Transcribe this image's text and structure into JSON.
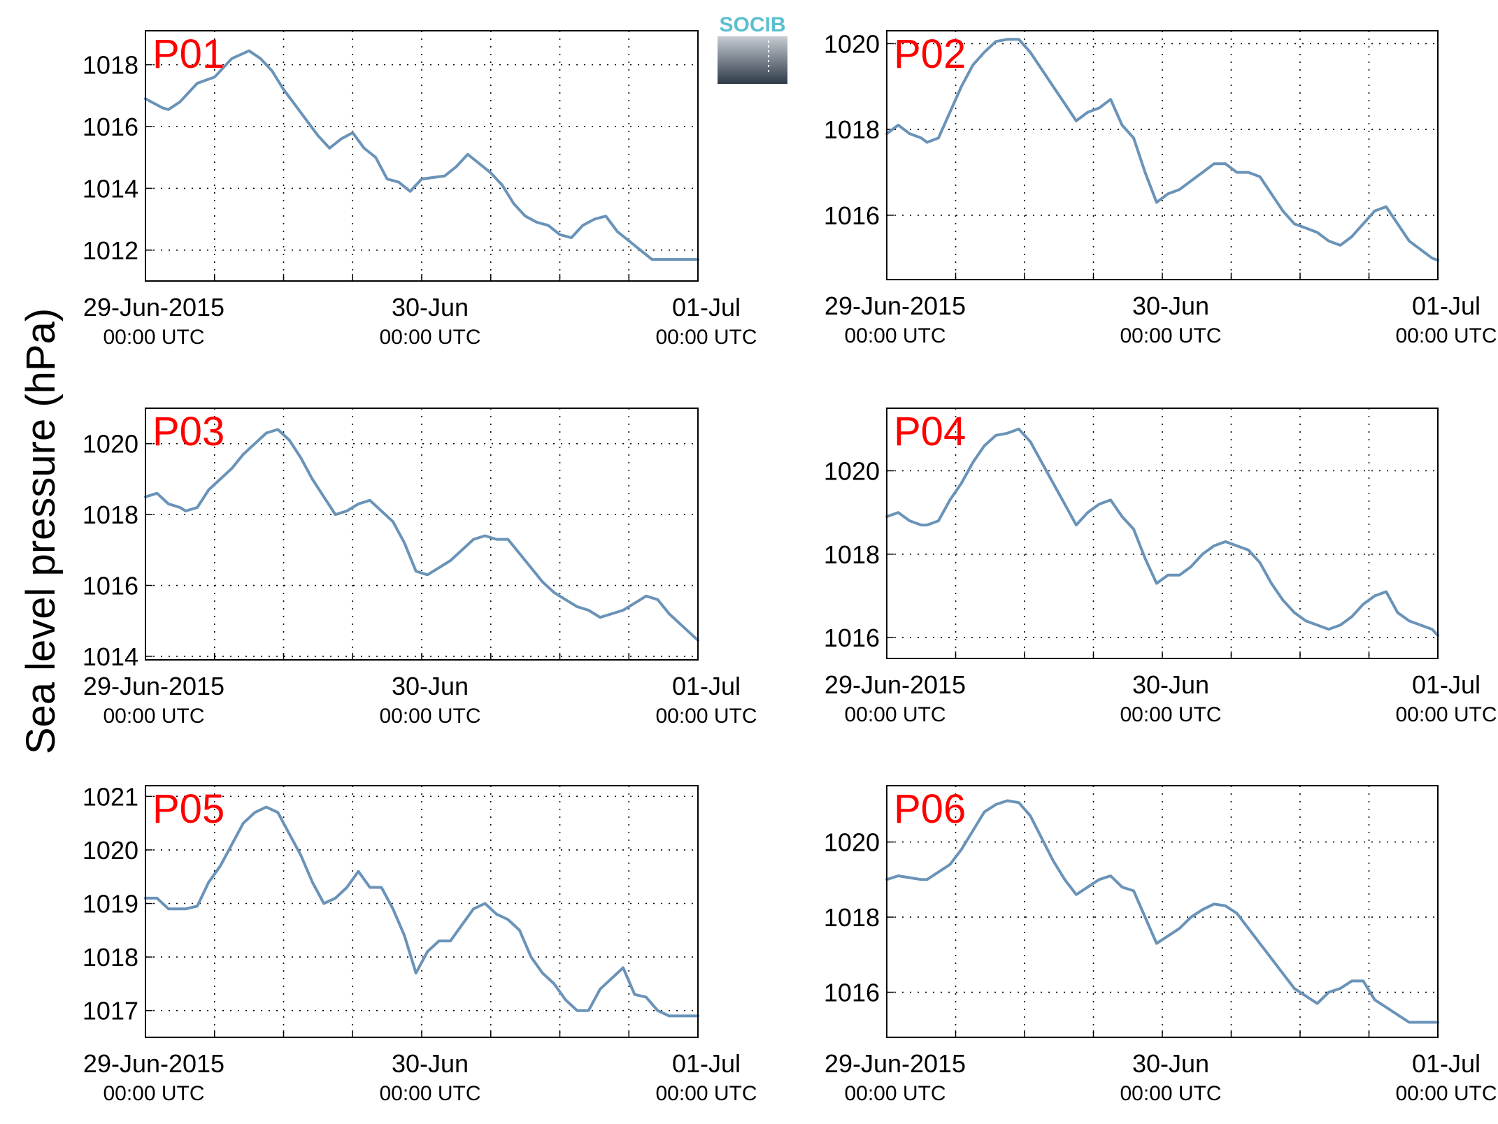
{
  "figure": {
    "ylabel": "Sea level pressure (hPa)",
    "logo_text": "SOCIB",
    "colors": {
      "line": "#6a93b8",
      "panel_label": "#ff0000",
      "grid": "#000000",
      "logo_text": "#5bbfd0",
      "logo_top": "#c6ccd2",
      "logo_bottom": "#2d3a48"
    }
  },
  "chart_data": [
    {
      "type": "line",
      "title": "P01",
      "grid": true,
      "xlim": [
        0,
        48
      ],
      "ylim": [
        1011,
        1019.1
      ],
      "xticks": [
        {
          "x": 0,
          "line1": "29-Jun-2015",
          "line2": "00:00 UTC"
        },
        {
          "x": 24,
          "line1": "30-Jun",
          "line2": "00:00 UTC"
        },
        {
          "x": 48,
          "line1": "01-Jul",
          "line2": "00:00 UTC"
        }
      ],
      "yticks": [
        1012,
        1014,
        1016,
        1018
      ],
      "x": [
        0,
        1.5,
        2,
        3,
        4.5,
        6,
        7.5,
        9,
        10,
        11,
        12,
        13,
        14,
        15,
        16,
        17,
        18,
        19,
        20,
        21,
        22,
        23,
        24,
        25,
        26,
        27,
        28,
        29,
        30,
        31,
        32,
        33,
        34,
        35,
        36,
        37,
        38,
        39,
        40,
        41,
        42,
        43,
        44,
        45,
        46,
        47,
        48
      ],
      "y": [
        1016.9,
        1016.6,
        1016.55,
        1016.8,
        1017.4,
        1017.6,
        1018.2,
        1018.45,
        1018.2,
        1017.8,
        1017.2,
        1016.7,
        1016.2,
        1015.7,
        1015.3,
        1015.6,
        1015.8,
        1015.3,
        1015.0,
        1014.3,
        1014.2,
        1013.9,
        1014.3,
        1014.35,
        1014.4,
        1014.7,
        1015.1,
        1014.8,
        1014.5,
        1014.1,
        1013.5,
        1013.1,
        1012.9,
        1012.8,
        1012.5,
        1012.4,
        1012.8,
        1013.0,
        1013.1,
        1012.6,
        1012.3,
        1012.0,
        1011.7,
        1011.7,
        1011.7,
        1011.7,
        1011.7
      ]
    },
    {
      "type": "line",
      "title": "P02",
      "grid": true,
      "xlim": [
        0,
        48
      ],
      "ylim": [
        1014.5,
        1020.3
      ],
      "xticks": [
        {
          "x": 0,
          "line1": "29-Jun-2015",
          "line2": "00:00 UTC"
        },
        {
          "x": 24,
          "line1": "30-Jun",
          "line2": "00:00 UTC"
        },
        {
          "x": 48,
          "line1": "01-Jul",
          "line2": "00:00 UTC"
        }
      ],
      "yticks": [
        1016,
        1018,
        1020
      ],
      "x": [
        0,
        1,
        2,
        3,
        3.5,
        4.5,
        5.5,
        6.5,
        7.5,
        8.5,
        9.5,
        10.5,
        11.5,
        12.5,
        13.5,
        14.5,
        15.5,
        16.5,
        17.5,
        18.5,
        19.5,
        20.5,
        21.5,
        22.5,
        23.5,
        24.5,
        25.5,
        26.5,
        27.5,
        28.5,
        29.5,
        30.5,
        31.5,
        32.5,
        33.5,
        34.5,
        35.5,
        36.5,
        37.5,
        38.5,
        39.5,
        40.5,
        41.5,
        42.5,
        43.5,
        44.5,
        45.5,
        46.5,
        47.5,
        48
      ],
      "y": [
        1017.9,
        1018.1,
        1017.9,
        1017.8,
        1017.7,
        1017.8,
        1018.4,
        1019.0,
        1019.5,
        1019.8,
        1020.05,
        1020.1,
        1020.1,
        1019.8,
        1019.4,
        1019.0,
        1018.6,
        1018.2,
        1018.4,
        1018.5,
        1018.7,
        1018.1,
        1017.8,
        1017.0,
        1016.3,
        1016.5,
        1016.6,
        1016.8,
        1017.0,
        1017.2,
        1017.2,
        1017.0,
        1017.0,
        1016.9,
        1016.5,
        1016.1,
        1015.8,
        1015.7,
        1015.6,
        1015.4,
        1015.3,
        1015.5,
        1015.8,
        1016.1,
        1016.2,
        1015.8,
        1015.4,
        1015.2,
        1015.0,
        1014.95
      ]
    },
    {
      "type": "line",
      "title": "P03",
      "grid": true,
      "xlim": [
        0,
        48
      ],
      "ylim": [
        1013.9,
        1021.0
      ],
      "xticks": [
        {
          "x": 0,
          "line1": "29-Jun-2015",
          "line2": "00:00 UTC"
        },
        {
          "x": 24,
          "line1": "30-Jun",
          "line2": "00:00 UTC"
        },
        {
          "x": 48,
          "line1": "01-Jul",
          "line2": "00:00 UTC"
        }
      ],
      "yticks": [
        1014,
        1016,
        1018,
        1020
      ],
      "x": [
        0,
        1,
        2,
        3,
        3.5,
        4.5,
        5.5,
        6.5,
        7.5,
        8.5,
        9.5,
        10.5,
        11.5,
        12.5,
        13.5,
        14.5,
        15.5,
        16.5,
        17.5,
        18.5,
        19.5,
        20.5,
        21.5,
        22.5,
        23.5,
        24.5,
        25.5,
        26.5,
        27.5,
        28.5,
        29.5,
        30.5,
        31.5,
        32.5,
        33.5,
        34.5,
        35.5,
        36.5,
        37.5,
        38.5,
        39.5,
        40.5,
        41.5,
        42.5,
        43.5,
        44.5,
        45.5,
        46.5,
        47.5,
        48
      ],
      "y": [
        1018.5,
        1018.6,
        1018.3,
        1018.2,
        1018.1,
        1018.2,
        1018.7,
        1019.0,
        1019.3,
        1019.7,
        1020.0,
        1020.3,
        1020.4,
        1020.1,
        1019.6,
        1019.0,
        1018.5,
        1018.0,
        1018.1,
        1018.3,
        1018.4,
        1018.1,
        1017.8,
        1017.2,
        1016.4,
        1016.3,
        1016.5,
        1016.7,
        1017.0,
        1017.3,
        1017.4,
        1017.3,
        1017.3,
        1016.9,
        1016.5,
        1016.1,
        1015.8,
        1015.6,
        1015.4,
        1015.3,
        1015.1,
        1015.2,
        1015.3,
        1015.5,
        1015.7,
        1015.6,
        1015.2,
        1014.9,
        1014.6,
        1014.45
      ]
    },
    {
      "type": "line",
      "title": "P04",
      "grid": true,
      "xlim": [
        0,
        48
      ],
      "ylim": [
        1015.5,
        1021.5
      ],
      "xticks": [
        {
          "x": 0,
          "line1": "29-Jun-2015",
          "line2": "00:00 UTC"
        },
        {
          "x": 24,
          "line1": "30-Jun",
          "line2": "00:00 UTC"
        },
        {
          "x": 48,
          "line1": "01-Jul",
          "line2": "00:00 UTC"
        }
      ],
      "yticks": [
        1016,
        1018,
        1020
      ],
      "x": [
        0,
        1,
        2,
        3,
        3.5,
        4.5,
        5.5,
        6.5,
        7.5,
        8.5,
        9.5,
        10.5,
        11.5,
        12.5,
        13.5,
        14.5,
        15.5,
        16.5,
        17.5,
        18.5,
        19.5,
        20.5,
        21.5,
        22.5,
        23.5,
        24.5,
        25.5,
        26.5,
        27.5,
        28.5,
        29.5,
        30.5,
        31.5,
        32.5,
        33.5,
        34.5,
        35.5,
        36.5,
        37.5,
        38.5,
        39.5,
        40.5,
        41.5,
        42.5,
        43.5,
        44.5,
        45.5,
        46.5,
        47.5,
        48
      ],
      "y": [
        1018.9,
        1019.0,
        1018.8,
        1018.7,
        1018.7,
        1018.8,
        1019.3,
        1019.7,
        1020.2,
        1020.6,
        1020.85,
        1020.9,
        1021.0,
        1020.7,
        1020.2,
        1019.7,
        1019.2,
        1018.7,
        1019.0,
        1019.2,
        1019.3,
        1018.9,
        1018.6,
        1017.9,
        1017.3,
        1017.5,
        1017.5,
        1017.7,
        1018.0,
        1018.2,
        1018.3,
        1018.2,
        1018.1,
        1017.8,
        1017.3,
        1016.9,
        1016.6,
        1016.4,
        1016.3,
        1016.2,
        1016.3,
        1016.5,
        1016.8,
        1017.0,
        1017.1,
        1016.6,
        1016.4,
        1016.3,
        1016.2,
        1016.05
      ]
    },
    {
      "type": "line",
      "title": "P05",
      "grid": true,
      "xlim": [
        0,
        48
      ],
      "ylim": [
        1016.5,
        1021.2
      ],
      "xticks": [
        {
          "x": 0,
          "line1": "29-Jun-2015",
          "line2": "00:00 UTC"
        },
        {
          "x": 24,
          "line1": "30-Jun",
          "line2": "00:00 UTC"
        },
        {
          "x": 48,
          "line1": "01-Jul",
          "line2": "00:00 UTC"
        }
      ],
      "yticks": [
        1017,
        1018,
        1019,
        1020,
        1021
      ],
      "x": [
        0,
        1,
        2,
        3,
        3.5,
        4.5,
        5.5,
        6.5,
        7.5,
        8.5,
        9.5,
        10.5,
        11.5,
        12.5,
        13.5,
        14.5,
        15.5,
        16.5,
        17.5,
        18.5,
        19.5,
        20.5,
        21.5,
        22.5,
        23.5,
        24.5,
        25.5,
        26.5,
        27.5,
        28.5,
        29.5,
        30.5,
        31.5,
        32.5,
        33.5,
        34.5,
        35.5,
        36.5,
        37.5,
        38.5,
        39.5,
        40.5,
        41.5,
        42.5,
        43.5,
        44.5,
        45.5,
        46.5,
        47.5,
        48
      ],
      "y": [
        1019.1,
        1019.1,
        1018.9,
        1018.9,
        1018.9,
        1018.95,
        1019.4,
        1019.7,
        1020.1,
        1020.5,
        1020.7,
        1020.8,
        1020.7,
        1020.3,
        1019.9,
        1019.4,
        1019.0,
        1019.1,
        1019.3,
        1019.6,
        1019.3,
        1019.3,
        1018.9,
        1018.4,
        1017.7,
        1018.1,
        1018.3,
        1018.3,
        1018.6,
        1018.9,
        1019.0,
        1018.8,
        1018.7,
        1018.5,
        1018.0,
        1017.7,
        1017.5,
        1017.2,
        1017.0,
        1017.0,
        1017.4,
        1017.6,
        1017.8,
        1017.3,
        1017.25,
        1017.0,
        1016.9,
        1016.9,
        1016.9,
        1016.9
      ]
    },
    {
      "type": "line",
      "title": "P06",
      "grid": true,
      "xlim": [
        0,
        48
      ],
      "ylim": [
        1014.8,
        1021.5
      ],
      "xticks": [
        {
          "x": 0,
          "line1": "29-Jun-2015",
          "line2": "00:00 UTC"
        },
        {
          "x": 24,
          "line1": "30-Jun",
          "line2": "00:00 UTC"
        },
        {
          "x": 48,
          "line1": "01-Jul",
          "line2": "00:00 UTC"
        }
      ],
      "yticks": [
        1016,
        1018,
        1020
      ],
      "x": [
        0,
        1,
        2,
        3,
        3.5,
        4.5,
        5.5,
        6.5,
        7.5,
        8.5,
        9.5,
        10.5,
        11.5,
        12.5,
        13.5,
        14.5,
        15.5,
        16.5,
        17.5,
        18.5,
        19.5,
        20.5,
        21.5,
        22.5,
        23.5,
        24.5,
        25.5,
        26.5,
        27.5,
        28.5,
        29.5,
        30.5,
        31.5,
        32.5,
        33.5,
        34.5,
        35.5,
        36.5,
        37.5,
        38.5,
        39.5,
        40.5,
        41.5,
        42.5,
        43.5,
        44.5,
        45.5,
        46.5,
        47.5,
        48
      ],
      "y": [
        1019.0,
        1019.1,
        1019.05,
        1019.0,
        1019.0,
        1019.2,
        1019.4,
        1019.8,
        1020.3,
        1020.8,
        1021.0,
        1021.1,
        1021.05,
        1020.7,
        1020.1,
        1019.5,
        1019.0,
        1018.6,
        1018.8,
        1019.0,
        1019.1,
        1018.8,
        1018.7,
        1018.0,
        1017.3,
        1017.5,
        1017.7,
        1018.0,
        1018.2,
        1018.35,
        1018.3,
        1018.1,
        1017.7,
        1017.3,
        1016.9,
        1016.5,
        1016.1,
        1015.9,
        1015.7,
        1016.0,
        1016.1,
        1016.3,
        1016.3,
        1015.8,
        1015.6,
        1015.4,
        1015.2,
        1015.2,
        1015.2,
        1015.2
      ]
    }
  ]
}
